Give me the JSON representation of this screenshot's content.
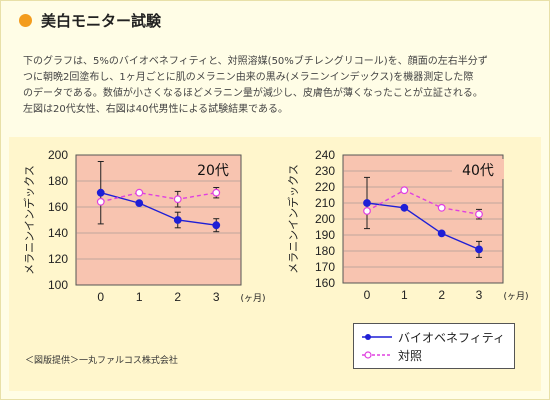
{
  "header": {
    "title": "美白モニター試験",
    "accent_color": "#f39c1e"
  },
  "description": {
    "lines": [
      "下のグラフは、5%のバイオベネフィティと、対照溶媒(50%ブチレングリコール)を、顔面の左右半分ず",
      "つに朝晩2回塗布し、1ヶ月ごとに肌のメラニン由来の黒み(メラニンインデックス)を機器測定した際",
      "のデータである。数値が小さくなるほどメラニン量が減少し、皮膚色が薄くなったことが立証される。",
      "左図は20代女性、右図は40代男性による試験結果である。"
    ]
  },
  "chart_data": [
    {
      "type": "line",
      "panel_label": "20代",
      "x": [
        0,
        1,
        2,
        3
      ],
      "xlabel": "(ヶ月)",
      "ylabel": "メラニンインデックス",
      "ylim": [
        100,
        200
      ],
      "yticks": [
        100,
        120,
        140,
        160,
        180,
        200
      ],
      "grid": true,
      "legend": "none",
      "series": [
        {
          "name": "バイオベネフィティ",
          "values": [
            171,
            163,
            150,
            146
          ],
          "errors": [
            24,
            0,
            6,
            5
          ],
          "color": "#1f1fd6",
          "style": "solid",
          "marker": "filled-circle"
        },
        {
          "name": "対照",
          "values": [
            164,
            171,
            166,
            171
          ],
          "errors": [
            0,
            0,
            6,
            4
          ],
          "color": "#e040e0",
          "style": "dashed",
          "marker": "open-circle"
        }
      ]
    },
    {
      "type": "line",
      "panel_label": "40代",
      "x": [
        0,
        1,
        2,
        3
      ],
      "xlabel": "(ヶ月)",
      "ylabel": "メラニンインデックス",
      "ylim": [
        160,
        240
      ],
      "yticks": [
        160,
        170,
        180,
        190,
        200,
        210,
        220,
        230,
        240
      ],
      "grid": true,
      "legend": "bottom-right",
      "series": [
        {
          "name": "バイオベネフィティ",
          "values": [
            210,
            207,
            191,
            181
          ],
          "errors": [
            16,
            0,
            0,
            5
          ],
          "color": "#1f1fd6",
          "style": "solid",
          "marker": "filled-circle"
        },
        {
          "name": "対照",
          "values": [
            205,
            218,
            207,
            203
          ],
          "errors": [
            0,
            0,
            0,
            3
          ],
          "color": "#e040e0",
          "style": "dashed",
          "marker": "open-circle"
        }
      ]
    }
  ],
  "legend": {
    "items": [
      {
        "label": "バイオベネフィティ",
        "color": "#1f1fd6",
        "marker": "filled-circle",
        "style": "solid"
      },
      {
        "label": "対照",
        "color": "#e040e0",
        "marker": "open-circle",
        "style": "dashed"
      }
    ]
  },
  "footer": {
    "credit": "＜図版提供＞一丸ファルコス株式会社"
  },
  "colors": {
    "page_background": "#fffde6",
    "plot_background": "#f8c4b0",
    "grid": "#888888"
  }
}
